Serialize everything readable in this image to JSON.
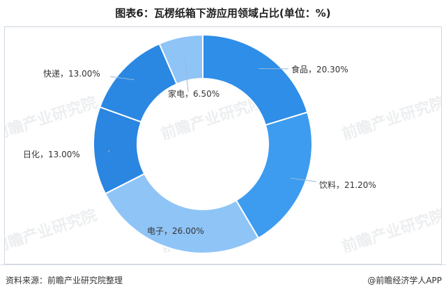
{
  "header": {
    "title": "图表6：瓦楞纸箱下游应用领域占比(单位：%)"
  },
  "chart_data": {
    "type": "pie",
    "title": "图表6：瓦楞纸箱下游应用领域占比(单位：%)",
    "slices": [
      {
        "label": "食品",
        "value": 20.3,
        "display": "食品，20.30%",
        "color": "#2e8ee8"
      },
      {
        "label": "饮料",
        "value": 21.2,
        "display": "饮料，21.20%",
        "color": "#3d9cf0"
      },
      {
        "label": "电子",
        "value": 26.0,
        "display": "电子，26.00%",
        "color": "#8fc4f7"
      },
      {
        "label": "日化",
        "value": 13.0,
        "display": "日化，13.00%",
        "color": "#2a86e0"
      },
      {
        "label": "快递",
        "value": 13.0,
        "display": "快递，13.00%",
        "color": "#2b88e2"
      },
      {
        "label": "家电",
        "value": 6.5,
        "display": "家电，6.50%",
        "color": "#8fc4f7"
      }
    ],
    "donut": true
  },
  "watermark": {
    "text": "前瞻产业研究院"
  },
  "footer": {
    "source": "资料来源：前瞻产业研究院整理",
    "brand": "@前瞻经济学人APP"
  }
}
